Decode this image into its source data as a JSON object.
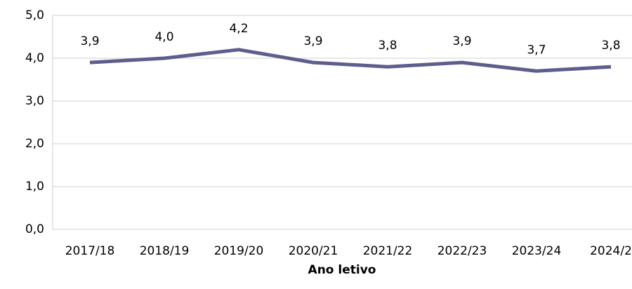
{
  "chart_data": {
    "type": "line",
    "x_label": "Ano letivo",
    "categories": [
      "2017/18",
      "2018/19",
      "2019/20",
      "2020/21",
      "2021/22",
      "2022/23",
      "2023/24",
      "2024/2"
    ],
    "series": [
      {
        "name": null,
        "color": "#5e5e8e",
        "values": [
          3.9,
          4.0,
          4.2,
          3.9,
          3.8,
          3.9,
          3.7,
          3.8
        ],
        "value_labels": [
          "3,9",
          "4,0",
          "4,2",
          "3,9",
          "3,8",
          "3,9",
          "3,7",
          "3,8"
        ]
      }
    ],
    "ylim": [
      0,
      5
    ],
    "yticks": [
      {
        "value": 0,
        "label": "0,0"
      },
      {
        "value": 1,
        "label": "1,0"
      },
      {
        "value": 2,
        "label": "2,0"
      },
      {
        "value": 3,
        "label": "3,0"
      },
      {
        "value": 4,
        "label": "4,0"
      },
      {
        "value": 5,
        "label": "5,0"
      }
    ],
    "grid": true
  }
}
